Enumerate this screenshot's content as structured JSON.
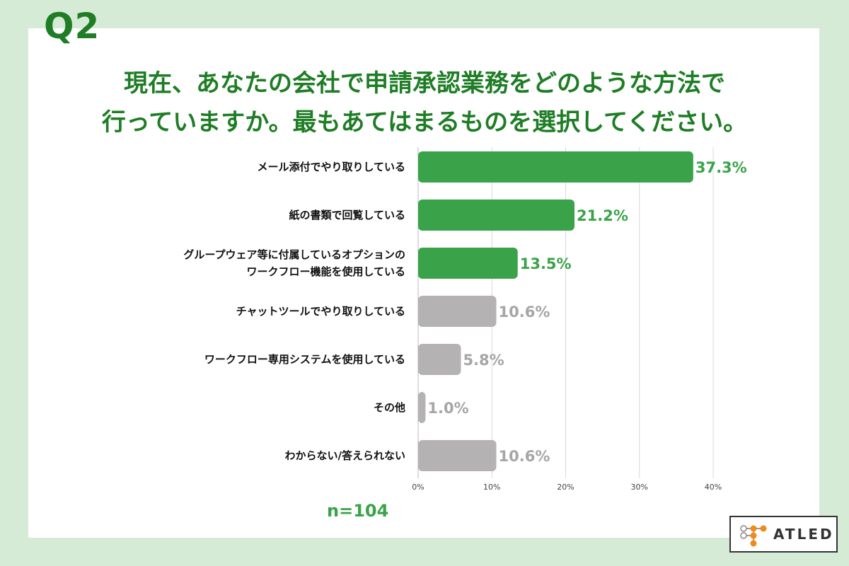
{
  "question": {
    "number": "Q2",
    "line1": "現在、あなたの会社で申請承認業務をどのような方法で",
    "line2": "行っていますか。最もあてはまるものを選択してください。"
  },
  "chart_data": {
    "type": "bar",
    "orientation": "horizontal",
    "categories": [
      [
        "メール添付でやり取りしている"
      ],
      [
        "紙の書類で回覧している"
      ],
      [
        "グループウェア等に付属しているオプションの",
        "ワークフロー機能を使用している"
      ],
      [
        "チャットツールでやり取りしている"
      ],
      [
        "ワークフロー専用システムを使用している"
      ],
      [
        "その他"
      ],
      [
        "わからない/答えられない"
      ]
    ],
    "values": [
      37.3,
      21.2,
      13.5,
      10.6,
      5.8,
      1.0,
      10.6
    ],
    "value_labels": [
      "37.3%",
      "21.2%",
      "13.5%",
      "10.6%",
      "5.8%",
      "1.0%",
      "10.6%"
    ],
    "highlight": [
      true,
      true,
      true,
      false,
      false,
      false,
      false
    ],
    "xlim": [
      0,
      40
    ],
    "ticks": [
      0,
      10,
      20,
      30,
      40
    ],
    "tick_labels": [
      "0%",
      "10%",
      "20%",
      "30%",
      "40%"
    ],
    "colors": {
      "highlight": "#3aa34a",
      "other": "#b4b2b2",
      "grid": "#d9d9d9"
    }
  },
  "sample": {
    "label": "n=104"
  },
  "logo": {
    "text": "ATLED"
  }
}
